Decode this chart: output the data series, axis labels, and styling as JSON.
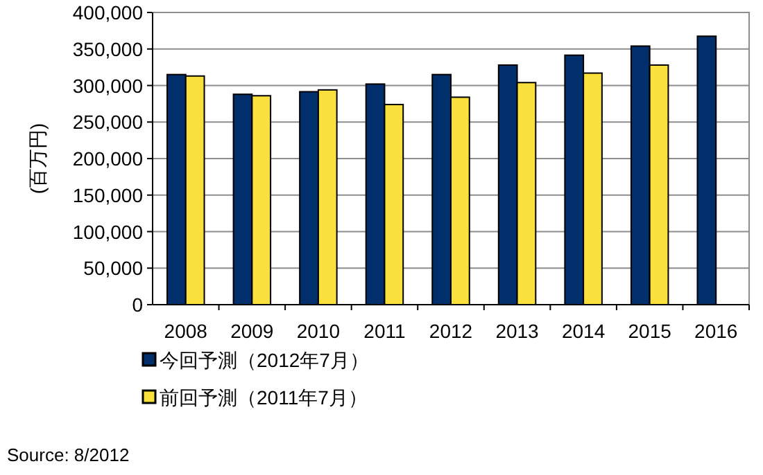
{
  "chart_data": {
    "type": "bar",
    "ylabel": "(百万円)",
    "categories": [
      "2008",
      "2009",
      "2010",
      "2011",
      "2012",
      "2013",
      "2014",
      "2015",
      "2016"
    ],
    "series": [
      {
        "name": "今回予測（2012年7月）",
        "color": "#002f6c",
        "values": [
          315000,
          288000,
          291500,
          302000,
          315000,
          328000,
          341500,
          354000,
          367500
        ]
      },
      {
        "name": "前回予測（2011年7月）",
        "color": "#f9e03c",
        "values": [
          313000,
          286000,
          294000,
          274000,
          284000,
          304000,
          317000,
          328000,
          null
        ]
      }
    ],
    "ylim": [
      0,
      400000
    ],
    "yticks": [
      {
        "value": 0,
        "label": "0"
      },
      {
        "value": 50000,
        "label": "50,000"
      },
      {
        "value": 100000,
        "label": "100,000"
      },
      {
        "value": 150000,
        "label": "150,000"
      },
      {
        "value": 200000,
        "label": "200,000"
      },
      {
        "value": 250000,
        "label": "250,000"
      },
      {
        "value": 300000,
        "label": "300,000"
      },
      {
        "value": 350000,
        "label": "350,000"
      },
      {
        "value": 400000,
        "label": "400,000"
      }
    ],
    "grid": "y",
    "legend": "bottom left",
    "annotations": [
      "Source: 8/2012"
    ]
  }
}
